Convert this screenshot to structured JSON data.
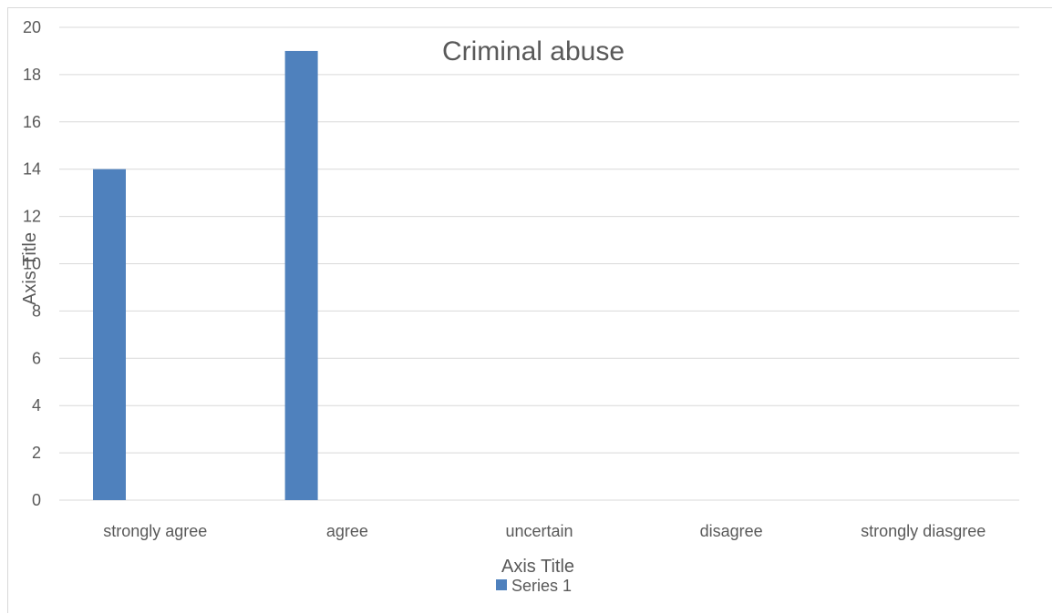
{
  "chart_data": {
    "type": "bar",
    "title": "Criminal abuse",
    "categories": [
      "strongly agree",
      "agree",
      "uncertain",
      "disagree",
      "strongly diasgree"
    ],
    "series": [
      {
        "name": "Series 1",
        "values": [
          14,
          19,
          0,
          0,
          0
        ],
        "color": "#4f81bd"
      }
    ],
    "xlabel": "Axis Title",
    "ylabel": "Axis Title",
    "ylim": [
      0,
      20
    ],
    "yticks": [
      0,
      2,
      4,
      6,
      8,
      10,
      12,
      14,
      16,
      18,
      20
    ],
    "grid": true,
    "legend_position": "bottom",
    "colors": {
      "gridline": "#d9d9d9",
      "text": "#595959",
      "bar": "#4f81bd"
    }
  }
}
